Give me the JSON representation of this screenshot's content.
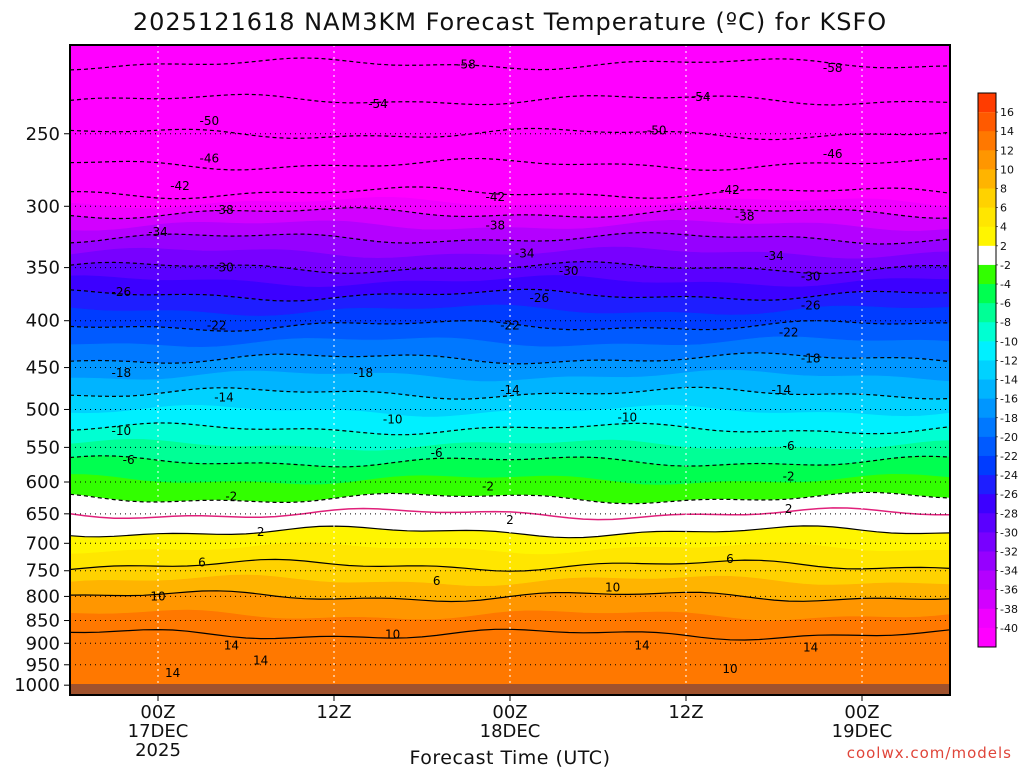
{
  "chart_data": {
    "type": "heatmap",
    "title": "2025121618 NAM3KM Forecast Temperature (ºC) for KSFO",
    "xlabel": "Forecast Time (UTC)",
    "ylabel": "",
    "y_ticks": [
      250,
      300,
      350,
      400,
      450,
      500,
      550,
      600,
      650,
      700,
      750,
      800,
      850,
      900,
      950,
      1000
    ],
    "ylim": [
      1025,
      200
    ],
    "y_scale": "log",
    "x_ticks": [
      {
        "label": "00Z",
        "day": "17DEC",
        "year": "2025",
        "hour": 6
      },
      {
        "label": "12Z",
        "day": "",
        "year": "",
        "hour": 18
      },
      {
        "label": "00Z",
        "day": "18DEC",
        "year": "",
        "hour": 30
      },
      {
        "label": "12Z",
        "day": "",
        "year": "",
        "hour": 42
      },
      {
        "label": "00Z",
        "day": "19DEC",
        "year": "",
        "hour": 54
      }
    ],
    "xlim_hours": [
      0,
      60
    ],
    "grid": true,
    "colorbar_levels": [
      16,
      14,
      12,
      10,
      8,
      6,
      4,
      2,
      -2,
      -4,
      -6,
      -8,
      -10,
      -12,
      -14,
      -16,
      -18,
      -20,
      -22,
      -24,
      -26,
      -28,
      -30,
      -32,
      -34,
      -36,
      -38,
      -40
    ],
    "colorbar_colors": [
      "#ff3c00",
      "#ff5a00",
      "#ff7800",
      "#ff9600",
      "#ffb400",
      "#ffd200",
      "#ffe600",
      "#fff500",
      "#ffffff",
      "#32ff00",
      "#00ff50",
      "#00ff96",
      "#00ffd2",
      "#00f0ff",
      "#00d2ff",
      "#00b4ff",
      "#0096ff",
      "#0078ff",
      "#005aff",
      "#003cff",
      "#1e1eff",
      "#3c00ff",
      "#5a00ff",
      "#7800ff",
      "#9600ff",
      "#b400ff",
      "#d200ff",
      "#f000ff"
    ],
    "temperature_profile": [
      {
        "p": 200,
        "t": -60
      },
      {
        "p": 220,
        "t": -56
      },
      {
        "p": 250,
        "t": -50
      },
      {
        "p": 270,
        "t": -46
      },
      {
        "p": 290,
        "t": -42
      },
      {
        "p": 305,
        "t": -38
      },
      {
        "p": 325,
        "t": -34
      },
      {
        "p": 350,
        "t": -30
      },
      {
        "p": 375,
        "t": -26
      },
      {
        "p": 405,
        "t": -22
      },
      {
        "p": 440,
        "t": -18
      },
      {
        "p": 480,
        "t": -14
      },
      {
        "p": 525,
        "t": -10
      },
      {
        "p": 570,
        "t": -6
      },
      {
        "p": 625,
        "t": -2
      },
      {
        "p": 650,
        "t": 0
      },
      {
        "p": 680,
        "t": 2
      },
      {
        "p": 740,
        "t": 6
      },
      {
        "p": 800,
        "t": 10
      },
      {
        "p": 880,
        "t": 14
      },
      {
        "p": 1000,
        "t": 13
      }
    ],
    "contour_labels": [
      {
        "v": "-58",
        "h": 27.0,
        "p": 210
      },
      {
        "v": "-58",
        "h": 52.0,
        "p": 212
      },
      {
        "v": "-54",
        "h": 21.0,
        "p": 232
      },
      {
        "v": "-54",
        "h": 43.0,
        "p": 228
      },
      {
        "v": "-50",
        "h": 9.5,
        "p": 242
      },
      {
        "v": "-50",
        "h": 40.0,
        "p": 248
      },
      {
        "v": "-46",
        "h": 9.5,
        "p": 266
      },
      {
        "v": "-46",
        "h": 52.0,
        "p": 263
      },
      {
        "v": "-42",
        "h": 7.5,
        "p": 285
      },
      {
        "v": "-42",
        "h": 29.0,
        "p": 293
      },
      {
        "v": "-42",
        "h": 45.0,
        "p": 288
      },
      {
        "v": "-38",
        "h": 10.5,
        "p": 303
      },
      {
        "v": "-38",
        "h": 29.0,
        "p": 315
      },
      {
        "v": "-38",
        "h": 46.0,
        "p": 308
      },
      {
        "v": "-34",
        "h": 6.0,
        "p": 320
      },
      {
        "v": "-34",
        "h": 31.0,
        "p": 338
      },
      {
        "v": "-34",
        "h": 48.0,
        "p": 340
      },
      {
        "v": "-30",
        "h": 10.5,
        "p": 350
      },
      {
        "v": "-30",
        "h": 34.0,
        "p": 353
      },
      {
        "v": "-30",
        "h": 50.5,
        "p": 358
      },
      {
        "v": "-26",
        "h": 3.5,
        "p": 372
      },
      {
        "v": "-26",
        "h": 32.0,
        "p": 378
      },
      {
        "v": "-26",
        "h": 50.5,
        "p": 385
      },
      {
        "v": "-22",
        "h": 10.0,
        "p": 405
      },
      {
        "v": "-22",
        "h": 30.0,
        "p": 405
      },
      {
        "v": "-22",
        "h": 49.0,
        "p": 412
      },
      {
        "v": "-18",
        "h": 3.5,
        "p": 456
      },
      {
        "v": "-18",
        "h": 20.0,
        "p": 456
      },
      {
        "v": "-18",
        "h": 50.5,
        "p": 440
      },
      {
        "v": "-14",
        "h": 10.5,
        "p": 485
      },
      {
        "v": "-14",
        "h": 30.0,
        "p": 476
      },
      {
        "v": "-14",
        "h": 48.5,
        "p": 476
      },
      {
        "v": "-10",
        "h": 3.5,
        "p": 528
      },
      {
        "v": "-10",
        "h": 22.0,
        "p": 513
      },
      {
        "v": "-10",
        "h": 38.0,
        "p": 510
      },
      {
        "v": "-6",
        "h": 4.0,
        "p": 568
      },
      {
        "v": "-6",
        "h": 25.0,
        "p": 558
      },
      {
        "v": "-6",
        "h": 49.0,
        "p": 548
      },
      {
        "v": "-2",
        "h": 11.0,
        "p": 622
      },
      {
        "v": "-2",
        "h": 28.5,
        "p": 607
      },
      {
        "v": "-2",
        "h": 49.0,
        "p": 592
      },
      {
        "v": "2",
        "h": 13.0,
        "p": 680
      },
      {
        "v": "2",
        "h": 30.0,
        "p": 660
      },
      {
        "v": "2",
        "h": 49.0,
        "p": 642
      },
      {
        "v": "6",
        "h": 9.0,
        "p": 735
      },
      {
        "v": "6",
        "h": 25.0,
        "p": 770
      },
      {
        "v": "6",
        "h": 45.0,
        "p": 728
      },
      {
        "v": "10",
        "h": 6.0,
        "p": 800
      },
      {
        "v": "10",
        "h": 22.0,
        "p": 880
      },
      {
        "v": "10",
        "h": 37.0,
        "p": 782
      },
      {
        "v": "10",
        "h": 45.0,
        "p": 960
      },
      {
        "v": "14",
        "h": 11.0,
        "p": 905
      },
      {
        "v": "14",
        "h": 13.0,
        "p": 940
      },
      {
        "v": "14",
        "h": 7.0,
        "p": 970
      },
      {
        "v": "14",
        "h": 39.0,
        "p": 905
      },
      {
        "v": "14",
        "h": 50.5,
        "p": 910
      }
    ],
    "credit": "coolwx.com/models"
  }
}
